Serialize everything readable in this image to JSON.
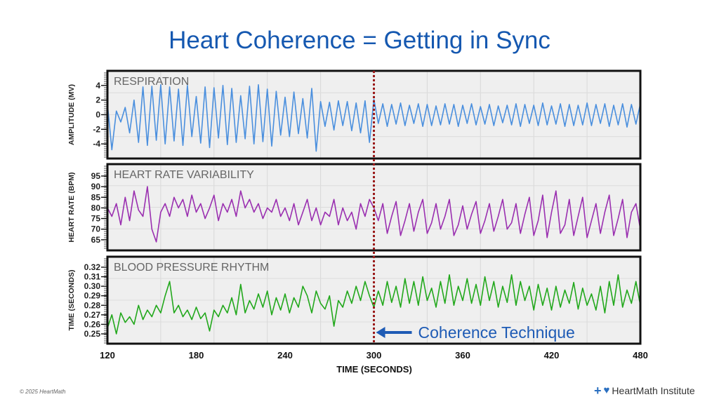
{
  "title": "Heart Coherence = Getting in Sync",
  "footer": {
    "copyright": "© 2025 HeartMath",
    "logo_text": "HeartMath Institute"
  },
  "colors": {
    "title": "#1558b0",
    "respiration": "#4a8fde",
    "hrv": "#9a2fb0",
    "bp": "#22a81c",
    "marker": "#9b1b1b",
    "annotation": "#1e5bb5",
    "panel_bg": "#efefef"
  },
  "chart_data": [
    {
      "type": "line",
      "panel_label": "RESPIRATION",
      "ylabel": "AMPLITUDE (MV)",
      "yticks": [
        4,
        2,
        0,
        -2,
        -4
      ],
      "ylim": [
        -6,
        6
      ],
      "xlim": [
        120,
        480
      ],
      "grid": true,
      "values": [
        1.5,
        -4.8,
        0.5,
        -1,
        1,
        -2.5,
        2,
        -3.8,
        3.8,
        -4.2,
        3.9,
        -3.5,
        4.1,
        -4,
        3.8,
        -3.6,
        3.5,
        -4.2,
        4,
        -3,
        2.5,
        -3.9,
        3.8,
        -4.5,
        3.7,
        -3.2,
        4,
        -4.1,
        3.6,
        -3.8,
        2.6,
        -3.3,
        3.9,
        -4,
        4.1,
        -3.7,
        3.5,
        -4.3,
        3.2,
        -2.8,
        2.4,
        -3,
        3.1,
        -2.6,
        2.2,
        -3.2,
        3.6,
        -5,
        1.8,
        -1.6,
        1.7,
        -2.1,
        1.9,
        -1.5,
        1.8,
        -2.2,
        1.6,
        -2.5,
        1.9,
        -3.8,
        2.1,
        -1.2,
        1.5,
        -1.6,
        1.4,
        -1.3,
        1.6,
        -1.5,
        1.3,
        -1.2,
        1.5,
        -1.6,
        1.4,
        -1.5,
        1.2,
        -1.4,
        1.5,
        -1.3,
        1.4,
        -1.6,
        1.3,
        -1.2,
        1.5,
        -1.4,
        1.1,
        -1.3,
        1.4,
        -1.5,
        1.2,
        -1.1,
        1.3,
        -1.4,
        1.5,
        -1.6,
        1.4,
        -1.2,
        1.3,
        -1.5,
        1.6,
        -1.4,
        1.2,
        -1.3,
        1.5,
        -1.6,
        1.4,
        -1.5,
        1.3,
        -1.4,
        1.6,
        -1.5,
        1.4,
        -1.2,
        1.5,
        -1.6,
        1.3,
        -1.4,
        1.5,
        -1.7,
        1.4,
        -1.3,
        1.5
      ]
    },
    {
      "type": "line",
      "panel_label": "HEART RATE VARIABILITY",
      "ylabel": "HEART RATE (BPM)",
      "yticks": [
        95,
        90,
        85,
        80,
        75,
        70,
        65
      ],
      "ylim": [
        60,
        100.6
      ],
      "xlim": [
        120,
        480
      ],
      "grid": true,
      "values": [
        80,
        76,
        82,
        72,
        85,
        74,
        88,
        79,
        76,
        90,
        70,
        64,
        78,
        82,
        76,
        85,
        80,
        84,
        76,
        86,
        78,
        82,
        75,
        80,
        86,
        74,
        82,
        78,
        84,
        76,
        88,
        80,
        84,
        78,
        82,
        75,
        80,
        78,
        84,
        76,
        80,
        74,
        82,
        72,
        78,
        84,
        74,
        80,
        72,
        78,
        76,
        84,
        72,
        80,
        74,
        78,
        70,
        82,
        76,
        84,
        80,
        74,
        82,
        68,
        76,
        83,
        67,
        74,
        82,
        69,
        78,
        84,
        68,
        73,
        82,
        70,
        76,
        84,
        67,
        72,
        81,
        70,
        77,
        83,
        68,
        74,
        82,
        69,
        76,
        84,
        70,
        73,
        82,
        68,
        77,
        85,
        67,
        74,
        86,
        66,
        78,
        88,
        68,
        72,
        84,
        67,
        76,
        85,
        66,
        74,
        82,
        68,
        78,
        86,
        67,
        75,
        84,
        66,
        78,
        82,
        70
      ]
    },
    {
      "type": "line",
      "panel_label": "BLOOD PRESSURE RHYTHM",
      "ylabel": "TIME (SECONDS)",
      "yticks": [
        0.32,
        0.31,
        0.3,
        0.29,
        0.28,
        0.27,
        0.26,
        0.25
      ],
      "ylim": [
        0.2397,
        0.331
      ],
      "xlim": [
        120,
        480
      ],
      "grid": true,
      "values": [
        0.256,
        0.27,
        0.25,
        0.272,
        0.262,
        0.268,
        0.26,
        0.28,
        0.265,
        0.275,
        0.268,
        0.28,
        0.272,
        0.29,
        0.305,
        0.272,
        0.28,
        0.268,
        0.275,
        0.265,
        0.278,
        0.266,
        0.272,
        0.253,
        0.275,
        0.268,
        0.28,
        0.272,
        0.288,
        0.27,
        0.302,
        0.272,
        0.285,
        0.276,
        0.292,
        0.278,
        0.295,
        0.27,
        0.288,
        0.275,
        0.292,
        0.272,
        0.288,
        0.278,
        0.3,
        0.29,
        0.272,
        0.295,
        0.282,
        0.276,
        0.29,
        0.258,
        0.285,
        0.278,
        0.295,
        0.282,
        0.3,
        0.285,
        0.305,
        0.29,
        0.278,
        0.295,
        0.28,
        0.305,
        0.283,
        0.3,
        0.278,
        0.308,
        0.282,
        0.305,
        0.28,
        0.31,
        0.285,
        0.298,
        0.278,
        0.305,
        0.282,
        0.312,
        0.28,
        0.3,
        0.285,
        0.308,
        0.282,
        0.302,
        0.28,
        0.31,
        0.285,
        0.305,
        0.278,
        0.3,
        0.283,
        0.312,
        0.28,
        0.305,
        0.285,
        0.3,
        0.275,
        0.302,
        0.28,
        0.298,
        0.275,
        0.3,
        0.278,
        0.296,
        0.282,
        0.304,
        0.276,
        0.298,
        0.28,
        0.292,
        0.275,
        0.3,
        0.272,
        0.305,
        0.28,
        0.312,
        0.278,
        0.296,
        0.282,
        0.305,
        0.28
      ]
    }
  ],
  "x_axis": {
    "label": "TIME (SECONDS)",
    "ticks": [
      120,
      180,
      240,
      300,
      360,
      420,
      480
    ],
    "sample_times_start": 120,
    "sample_times_end": 480
  },
  "marker": {
    "x": 300,
    "label": "Coherence Technique"
  }
}
